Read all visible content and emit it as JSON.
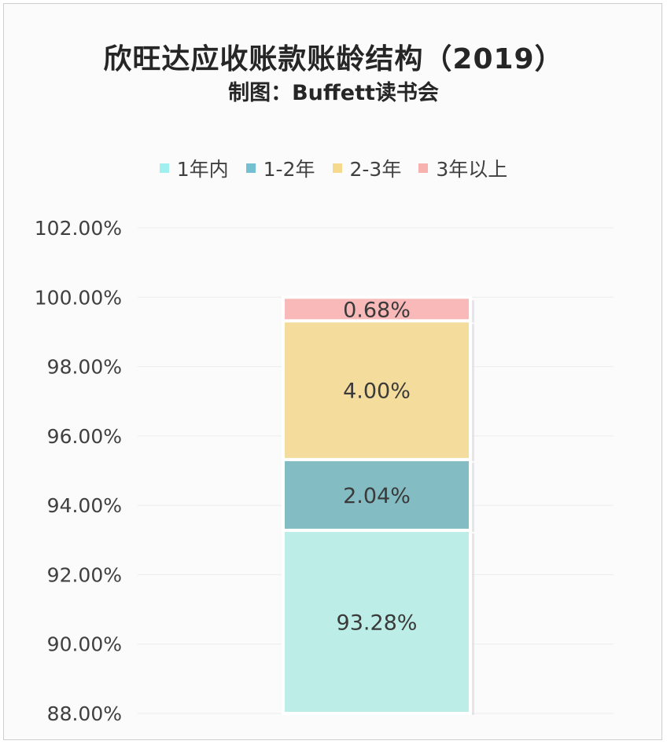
{
  "chart_data": {
    "type": "bar",
    "stacked": true,
    "title": "欣旺达应收账款账龄结构（2019）",
    "subtitle": "制图：Buffett读书会",
    "xlabel": "",
    "ylabel": "",
    "ylim": [
      88,
      102
    ],
    "yticks": [
      "88.00%",
      "90.00%",
      "92.00%",
      "94.00%",
      "96.00%",
      "98.00%",
      "100.00%",
      "102.00%"
    ],
    "grid": true,
    "legend_position": "top",
    "series": [
      {
        "name": "1年内",
        "value": 93.28,
        "label": "93.28%",
        "color": "#bcede6",
        "legend_color": "#9ff0ee"
      },
      {
        "name": "1-2年",
        "value": 2.04,
        "label": "2.04%",
        "color": "#84bcc3",
        "legend_color": "#74c0d1"
      },
      {
        "name": "2-3年",
        "value": 4.0,
        "label": "4.00%",
        "color": "#f4dc9d",
        "legend_color": "#f5d98d"
      },
      {
        "name": "3年以上",
        "value": 0.68,
        "label": "0.68%",
        "color": "#f9b9b8",
        "legend_color": "#f7b2b0"
      }
    ]
  }
}
